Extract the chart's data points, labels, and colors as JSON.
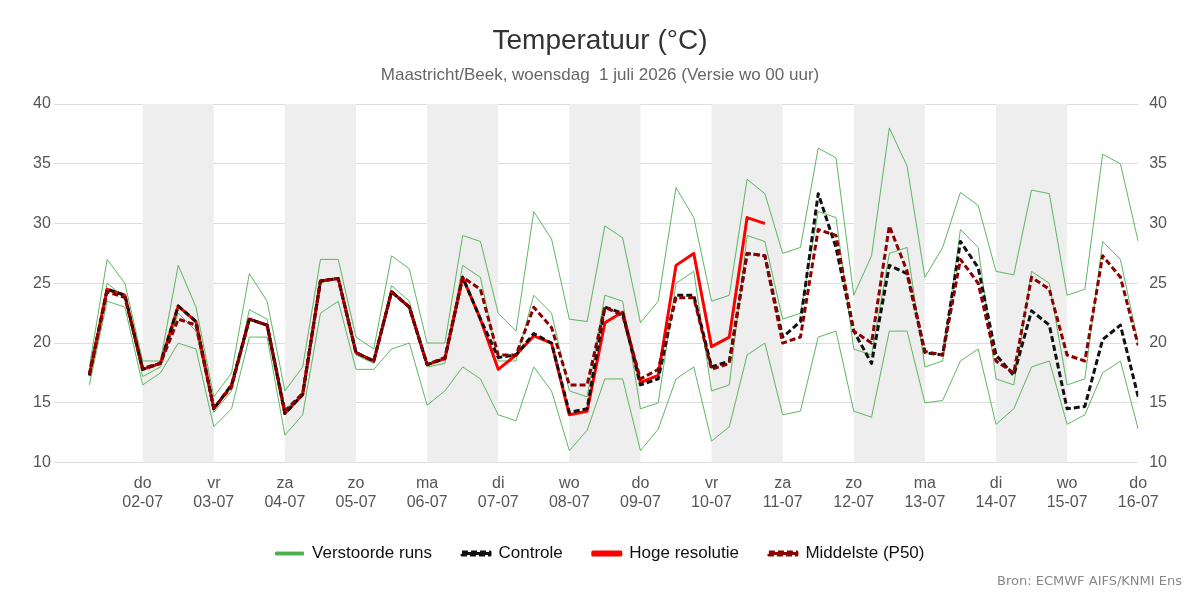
{
  "chart_data": {
    "type": "line",
    "title": "Temperatuur (°C)",
    "subtitle": "Maastricht/Beek, woensdag  1 juli 2026 (Versie wo 00 uur)",
    "xlim": [
      "2026-06-30T18:00",
      "2026-07-16"
    ],
    "xticks": [
      {
        "value": "2026-07-02",
        "label": "do\n02-07"
      },
      {
        "value": "2026-07-03",
        "label": "vr\n03-07"
      },
      {
        "value": "2026-07-04",
        "label": "za\n04-07"
      },
      {
        "value": "2026-07-05",
        "label": "zo\n05-07"
      },
      {
        "value": "2026-07-06",
        "label": "ma\n06-07"
      },
      {
        "value": "2026-07-07",
        "label": "di\n07-07"
      },
      {
        "value": "2026-07-08",
        "label": "wo\n08-07"
      },
      {
        "value": "2026-07-09",
        "label": "do\n09-07"
      },
      {
        "value": "2026-07-10",
        "label": "vr\n10-07"
      },
      {
        "value": "2026-07-11",
        "label": "za\n11-07"
      },
      {
        "value": "2026-07-12",
        "label": "zo\n12-07"
      },
      {
        "value": "2026-07-13",
        "label": "ma\n13-07"
      },
      {
        "value": "2026-07-14",
        "label": "di\n14-07"
      },
      {
        "value": "2026-07-15",
        "label": "wo\n15-07"
      },
      {
        "value": "2026-07-16",
        "label": "do\n16-07"
      }
    ],
    "ylim": [
      10,
      40
    ],
    "yticks": [
      10,
      15,
      20,
      25,
      30,
      35,
      40
    ],
    "y2lim": [
      10,
      40
    ],
    "y2ticks": [
      10,
      15,
      20,
      25,
      30,
      35,
      40
    ],
    "grid": "y",
    "legend": "bottom",
    "marker": "none",
    "bands": [
      {
        "axis": "x",
        "from": "2026-07-02",
        "to": "2026-07-03",
        "color": "#eeeeee"
      },
      {
        "axis": "x",
        "from": "2026-07-04",
        "to": "2026-07-05",
        "color": "#eeeeee"
      },
      {
        "axis": "x",
        "from": "2026-07-06",
        "to": "2026-07-07",
        "color": "#eeeeee"
      },
      {
        "axis": "x",
        "from": "2026-07-08",
        "to": "2026-07-09",
        "color": "#eeeeee"
      },
      {
        "axis": "x",
        "from": "2026-07-10",
        "to": "2026-07-11",
        "color": "#eeeeee"
      },
      {
        "axis": "x",
        "from": "2026-07-12",
        "to": "2026-07-13",
        "color": "#eeeeee"
      },
      {
        "axis": "x",
        "from": "2026-07-14",
        "to": "2026-07-15",
        "color": "#eeeeee"
      }
    ],
    "annotations": [
      "Bron: ECMWF AIFS/KNMI Ens"
    ],
    "series": [
      {
        "name": "Verstoorde runs",
        "color": "#4caf50",
        "line_style": "solid",
        "values": [
          18,
          27,
          25,
          18.5,
          18.5,
          26.5,
          23,
          15.5,
          17.5,
          25.8,
          23.5,
          16,
          18,
          27,
          27,
          20.5,
          19.5,
          27.3,
          26.2,
          20,
          20,
          29,
          28.5,
          22.5,
          21,
          31,
          28.7,
          22,
          21.8,
          29.8,
          28.8,
          21.7,
          23.5,
          33,
          30.5,
          23.5,
          24,
          33.7,
          32.5,
          27.5,
          28,
          36.3,
          35.5,
          24,
          27.3,
          38,
          34.8,
          25.5,
          28,
          32.6,
          31.5,
          26,
          25.7,
          32.8,
          32.5,
          24,
          24.5,
          35.8,
          35,
          28.5
        ]
      },
      {
        "color": "#4caf50",
        "line_style": "solid",
        "values": [
          16.5,
          23.5,
          23,
          16.5,
          17.5,
          20,
          19.5,
          13,
          14.5,
          20.5,
          20.5,
          12.3,
          14,
          22.5,
          23.5,
          17.8,
          17.8,
          19.5,
          20,
          14.8,
          16,
          18,
          17,
          14,
          13.5,
          18,
          16,
          11,
          12.7,
          17,
          17,
          11,
          12.8,
          17,
          18,
          11.8,
          13,
          19,
          20,
          14,
          14.3,
          20.5,
          21,
          14.3,
          13.8,
          21,
          21,
          15,
          15.2,
          18.5,
          19.5,
          13.2,
          14.5,
          18,
          18.5,
          13.2,
          14,
          17.5,
          18.5,
          12.8
        ]
      },
      {
        "color": "#4caf50",
        "line_style": "solid",
        "values": [
          17.2,
          25,
          23.8,
          17.2,
          18,
          22.5,
          21,
          14.2,
          16,
          22.8,
          22,
          14.5,
          15.5,
          25,
          25.5,
          19,
          18.3,
          24.8,
          23.5,
          18,
          18.3,
          26.5,
          25.5,
          18.5,
          18.5,
          24,
          22.5,
          16,
          15.5,
          24,
          23.5,
          14.5,
          15,
          25,
          26,
          16,
          16.5,
          29,
          28.5,
          22,
          22.5,
          31,
          30.5,
          19.5,
          19,
          27.5,
          28,
          18,
          18.5,
          29.5,
          28,
          17,
          16.5,
          26,
          25,
          16.5,
          17,
          28.5,
          27,
          20
        ]
      },
      {
        "name": "Controle",
        "color": "#111111",
        "line_style": "dashed",
        "values": [
          17.3,
          24.5,
          24,
          17.8,
          18.3,
          23.1,
          21.8,
          14.5,
          16.5,
          22,
          21.5,
          14.1,
          15.7,
          25.2,
          25.4,
          19.2,
          18.5,
          24.3,
          23,
          18.2,
          18.7,
          25.5,
          22,
          18.8,
          19,
          20.8,
          20,
          14.2,
          14.5,
          23,
          22.5,
          16.5,
          17,
          24,
          24,
          18,
          18.5,
          27.5,
          27.3,
          20.5,
          21.8,
          32.5,
          28,
          21,
          18.3,
          26.5,
          25.8,
          19.2,
          19,
          28.5,
          26.3,
          19,
          17.3,
          22.7,
          21.5,
          14.5,
          14.7,
          20.3,
          21.5,
          15.5
        ]
      },
      {
        "name": "Hoge resolutie",
        "color": "#ff0000",
        "line_style": "solid",
        "values": [
          17.3,
          24.5,
          24,
          17.8,
          18.3,
          23.1,
          21.8,
          14.5,
          16.5,
          22,
          21.5,
          14.1,
          15.7,
          25.2,
          25.4,
          19.2,
          18.5,
          24.3,
          23,
          18.2,
          18.7,
          25.5,
          22,
          17.8,
          19,
          20.6,
          20,
          14,
          14.3,
          21.7,
          22.6,
          16.7,
          17.3,
          26.5,
          27.5,
          19.7,
          20.5,
          30.5,
          30,
          null,
          null,
          null,
          null,
          null,
          null,
          null,
          null,
          null,
          null,
          null,
          null,
          null,
          null,
          null,
          null,
          null,
          null,
          null,
          null,
          null
        ]
      },
      {
        "name": "Middelste (P50)",
        "color": "#8b0000",
        "line_style": "dashed",
        "values": [
          17.4,
          24.3,
          23.8,
          17.9,
          18.3,
          22,
          21.5,
          14.6,
          16.3,
          22,
          21.5,
          14.3,
          15.8,
          25.2,
          25.4,
          19.2,
          18.5,
          24.3,
          23,
          18.2,
          18.8,
          25.5,
          24.5,
          19,
          19,
          23,
          21.3,
          16.5,
          16.5,
          23,
          22.3,
          17,
          17.8,
          23.8,
          23.8,
          17.8,
          18.3,
          27.5,
          27.3,
          20,
          20.5,
          29.5,
          29,
          21,
          20,
          29.8,
          26,
          19.3,
          19,
          27,
          25,
          18.5,
          17.5,
          25.5,
          24.5,
          19,
          18.5,
          27.3,
          25.5,
          19.8
        ]
      }
    ],
    "x": [
      "2026-07-01T06:00",
      "2026-07-01T12:00",
      "2026-07-01T18:00",
      "2026-07-02T00:00",
      "2026-07-02T06:00",
      "2026-07-02T12:00",
      "2026-07-02T18:00",
      "2026-07-03T00:00",
      "2026-07-03T06:00",
      "2026-07-03T12:00",
      "2026-07-03T18:00",
      "2026-07-04T00:00",
      "2026-07-04T06:00",
      "2026-07-04T12:00",
      "2026-07-04T18:00",
      "2026-07-05T00:00",
      "2026-07-05T06:00",
      "2026-07-05T12:00",
      "2026-07-05T18:00",
      "2026-07-06T00:00",
      "2026-07-06T06:00",
      "2026-07-06T12:00",
      "2026-07-06T18:00",
      "2026-07-07T00:00",
      "2026-07-07T06:00",
      "2026-07-07T12:00",
      "2026-07-07T18:00",
      "2026-07-08T00:00",
      "2026-07-08T06:00",
      "2026-07-08T12:00",
      "2026-07-08T18:00",
      "2026-07-09T00:00",
      "2026-07-09T06:00",
      "2026-07-09T12:00",
      "2026-07-09T18:00",
      "2026-07-10T00:00",
      "2026-07-10T06:00",
      "2026-07-10T12:00",
      "2026-07-10T18:00",
      "2026-07-11T00:00",
      "2026-07-11T06:00",
      "2026-07-11T12:00",
      "2026-07-11T18:00",
      "2026-07-12T00:00",
      "2026-07-12T06:00",
      "2026-07-12T12:00",
      "2026-07-12T18:00",
      "2026-07-13T00:00",
      "2026-07-13T06:00",
      "2026-07-13T12:00",
      "2026-07-13T18:00",
      "2026-07-14T00:00",
      "2026-07-14T06:00",
      "2026-07-14T12:00",
      "2026-07-14T18:00",
      "2026-07-15T00:00",
      "2026-07-15T06:00",
      "2026-07-15T12:00",
      "2026-07-15T18:00",
      "2026-07-16T00:00"
    ]
  }
}
